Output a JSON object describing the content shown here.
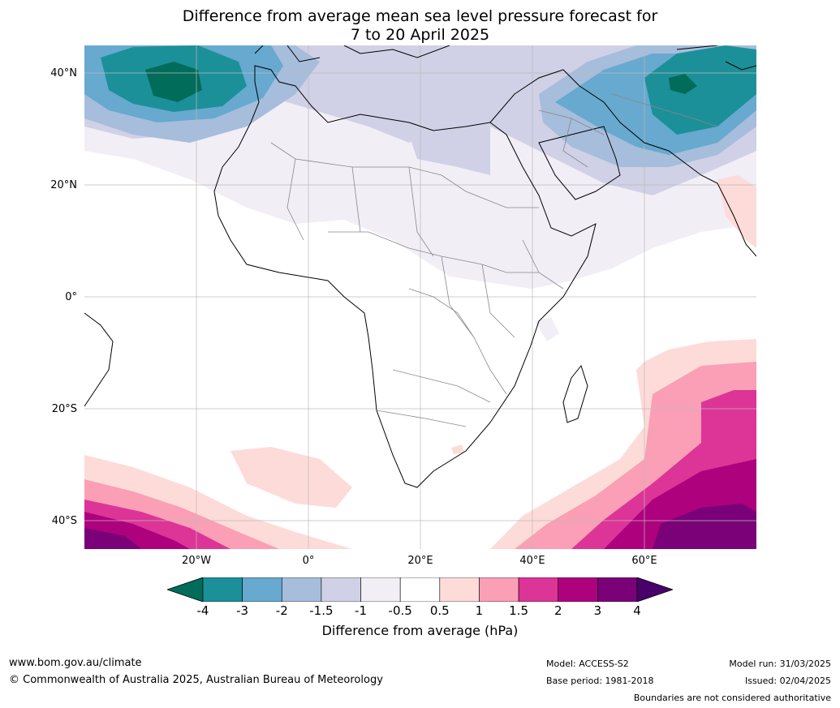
{
  "title_line1": "Difference from average mean sea level pressure forecast for",
  "title_line2": "7 to 20 April 2025",
  "lat_labels": [
    "40°N",
    "20°N",
    "0°",
    "20°S",
    "40°S"
  ],
  "lon_labels": [
    "20°W",
    "0°",
    "20°E",
    "40°E",
    "60°E"
  ],
  "colorbar": {
    "ticks": [
      "-4",
      "-3",
      "-2",
      "-1.5",
      "-1",
      "-0.5",
      "0.5",
      "1",
      "1.5",
      "2",
      "3",
      "4"
    ],
    "colors": [
      "#1c9099",
      "#67a9cf",
      "#a6bddb",
      "#d0d1e6",
      "#f1eef6",
      "#ffffff",
      "#fddbd9",
      "#fa9fb5",
      "#dd3497",
      "#ae017e",
      "#7a0177"
    ],
    "under_color": "#016c59",
    "over_color": "#49006a",
    "label": "Difference from average (hPa)"
  },
  "footer": {
    "website": "www.bom.gov.au/climate",
    "copyright": "© Commonwealth of Australia 2025, Australian Bureau of Meteorology",
    "model": "Model: ACCESS-S2",
    "base_period": "Base period: 1981-2018",
    "model_run": "Model run: 31/03/2025",
    "issued": "Issued: 02/04/2025",
    "boundaries_note": "Boundaries are not considered authoritative"
  }
}
